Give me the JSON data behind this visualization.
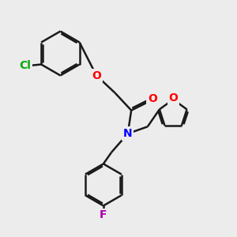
{
  "bg_color": "#ececec",
  "bond_color": "#1a1a1a",
  "bond_width": 1.8,
  "atom_colors": {
    "O": "#ff0000",
    "N": "#0000ff",
    "Cl": "#00aa00",
    "F": "#aa00aa"
  },
  "font_size": 10,
  "xlim": [
    0,
    10
  ],
  "ylim": [
    0,
    10
  ]
}
